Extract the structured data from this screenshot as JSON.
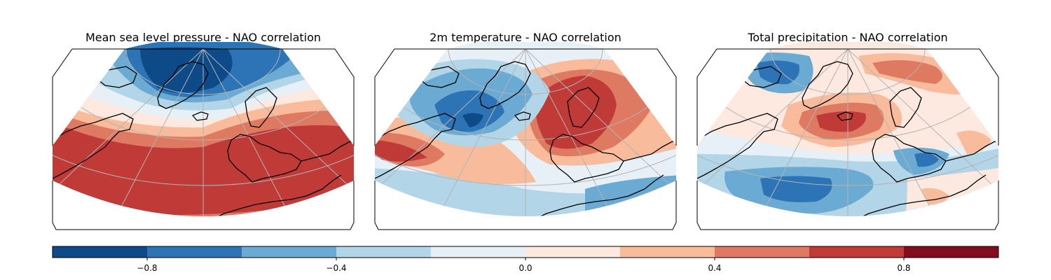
{
  "panels": [
    {
      "title": "Mean sea level pressure - NAO correlation",
      "field": "mslp"
    },
    {
      "title": "2m temperature - NAO correlation",
      "field": "t2m"
    },
    {
      "title": "Total precipitation - NAO correlation",
      "field": "tp"
    }
  ],
  "colorbar": {
    "min": -1.0,
    "max": 1.0,
    "levels": [
      -1.0,
      -0.8,
      -0.6,
      -0.4,
      -0.2,
      0.0,
      0.2,
      0.4,
      0.6,
      0.8,
      1.0
    ],
    "colors": [
      "#0d4a87",
      "#2c74b5",
      "#6aaad3",
      "#b3d5e8",
      "#e8f0f7",
      "#fde9df",
      "#f8bc9c",
      "#df7a62",
      "#c03a37",
      "#820d20"
    ],
    "ticks": [
      {
        "value": -0.8,
        "label": "−0.8"
      },
      {
        "value": -0.4,
        "label": "−0.4"
      },
      {
        "value": 0.0,
        "label": "0.0"
      },
      {
        "value": 0.4,
        "label": "0.4"
      },
      {
        "value": 0.8,
        "label": "0.8"
      }
    ]
  },
  "colors": {
    "coastline": "#000000",
    "gridlines": "#b3b3b3",
    "frame": "#000000"
  }
}
